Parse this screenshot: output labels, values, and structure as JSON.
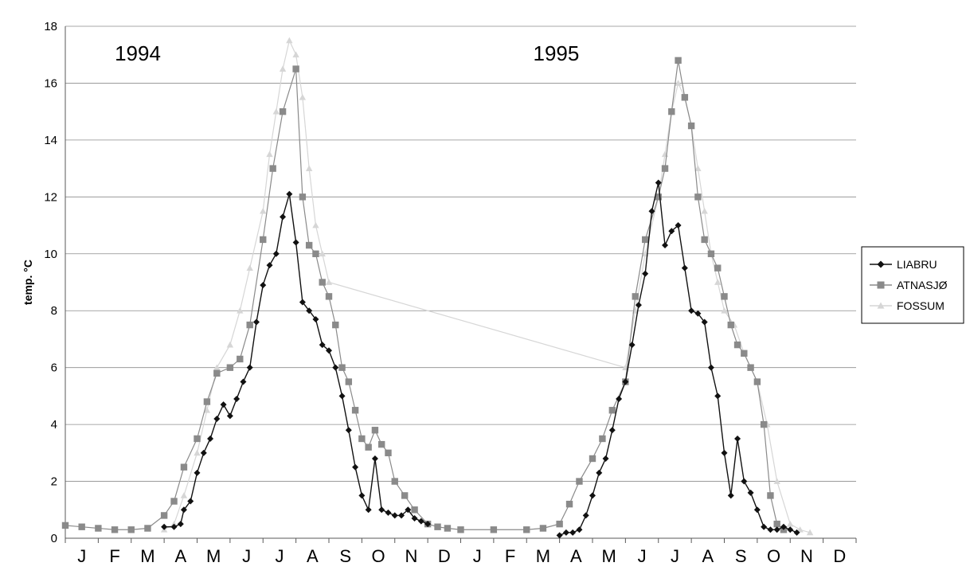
{
  "chart_data": {
    "type": "line",
    "ylabel": "temp. °C",
    "ylim": [
      0,
      18
    ],
    "yticks": [
      "0",
      "2",
      "4",
      "6",
      "8",
      "10",
      "12",
      "14",
      "16",
      "18"
    ],
    "xlim": [
      0,
      24
    ],
    "month_labels": [
      "J",
      "F",
      "M",
      "A",
      "M",
      "J",
      "J",
      "A",
      "S",
      "O",
      "N",
      "D",
      "J",
      "F",
      "M",
      "A",
      "M",
      "J",
      "J",
      "A",
      "S",
      "O",
      "N",
      "D"
    ],
    "annotations": [
      "1994",
      "1995"
    ],
    "grid": "horizontal",
    "legend_position": "right",
    "series": [
      {
        "name": "LIABRU",
        "color": "#111111",
        "marker": "diamond",
        "x": [
          3.0,
          3.3,
          3.5,
          3.6,
          3.8,
          4.0,
          4.2,
          4.4,
          4.6,
          4.8,
          5.0,
          5.2,
          5.4,
          5.6,
          5.8,
          6.0,
          6.2,
          6.4,
          6.6,
          6.8,
          7.0,
          7.2,
          7.4,
          7.6,
          7.8,
          8.0,
          8.2,
          8.4,
          8.6,
          8.8,
          9.0,
          9.2,
          9.4,
          9.6,
          9.8,
          10.0,
          10.2,
          10.4,
          10.6,
          10.8,
          11.0,
          12.0,
          13.0,
          14.0,
          15.0,
          15.2,
          15.4,
          15.6,
          15.8,
          16.0,
          16.2,
          16.4,
          16.6,
          16.8,
          17.0,
          17.2,
          17.4,
          17.6,
          17.8,
          18.0,
          18.2,
          18.4,
          18.6,
          18.8,
          19.0,
          19.2,
          19.4,
          19.6,
          19.8,
          20.0,
          20.2,
          20.4,
          20.6,
          20.8,
          21.0,
          21.2,
          21.4,
          21.6,
          21.8,
          22.0,
          22.2,
          22.4,
          22.6,
          22.8,
          23.0
        ],
        "y": [
          0.4,
          0.4,
          0.5,
          1.0,
          1.3,
          2.3,
          3.0,
          3.5,
          4.2,
          4.7,
          4.3,
          4.9,
          5.5,
          6.0,
          7.6,
          8.9,
          9.6,
          10.0,
          11.3,
          12.1,
          10.4,
          8.3,
          8.0,
          7.7,
          6.8,
          6.6,
          6.0,
          5.0,
          3.8,
          2.5,
          1.5,
          1.0,
          2.8,
          1.0,
          0.9,
          0.8,
          0.8,
          1.0,
          0.7,
          0.6,
          0.5,
          null,
          null,
          null,
          0.1,
          0.2,
          0.2,
          0.3,
          0.8,
          1.5,
          2.3,
          2.8,
          3.8,
          4.9,
          5.5,
          6.8,
          8.2,
          9.3,
          11.5,
          12.5,
          10.3,
          10.8,
          11.0,
          9.5,
          8.0,
          7.9,
          7.6,
          6.0,
          5.0,
          3.0,
          1.5,
          3.5,
          2.0,
          1.6,
          1.0,
          0.4,
          0.3,
          0.3,
          0.4,
          0.3,
          0.2,
          null,
          null,
          null,
          null
        ]
      },
      {
        "name": "ATNASJØ",
        "color": "#8a8a8a",
        "marker": "square",
        "x": [
          0.0,
          0.5,
          1.0,
          1.5,
          2.0,
          2.5,
          3.0,
          3.3,
          3.6,
          4.0,
          4.3,
          4.6,
          5.0,
          5.3,
          5.6,
          6.0,
          6.3,
          6.6,
          7.0,
          7.2,
          7.4,
          7.6,
          7.8,
          8.0,
          8.2,
          8.4,
          8.6,
          8.8,
          9.0,
          9.2,
          9.4,
          9.6,
          9.8,
          10.0,
          10.3,
          10.6,
          11.0,
          11.3,
          11.6,
          12.0,
          13.0,
          14.0,
          14.5,
          15.0,
          15.3,
          15.6,
          16.0,
          16.3,
          16.6,
          17.0,
          17.3,
          17.6,
          18.0,
          18.2,
          18.4,
          18.6,
          18.8,
          19.0,
          19.2,
          19.4,
          19.6,
          19.8,
          20.0,
          20.2,
          20.4,
          20.6,
          20.8,
          21.0,
          21.2,
          21.4,
          21.6,
          21.8,
          22.0,
          22.3,
          22.6,
          23.0
        ],
        "y": [
          0.45,
          0.4,
          0.35,
          0.3,
          0.3,
          0.35,
          0.8,
          1.3,
          2.5,
          3.5,
          4.8,
          5.8,
          6.0,
          6.3,
          7.5,
          10.5,
          13.0,
          15.0,
          16.5,
          12.0,
          10.3,
          10.0,
          9.0,
          8.5,
          7.5,
          6.0,
          5.5,
          4.5,
          3.5,
          3.2,
          3.8,
          3.3,
          3.0,
          2.0,
          1.5,
          1.0,
          0.5,
          0.4,
          0.35,
          0.3,
          0.3,
          0.3,
          0.35,
          0.5,
          1.2,
          2.0,
          2.8,
          3.5,
          4.5,
          5.5,
          8.5,
          10.5,
          12.0,
          13.0,
          15.0,
          16.8,
          15.5,
          14.5,
          12.0,
          10.5,
          10.0,
          9.5,
          8.5,
          7.5,
          6.8,
          6.5,
          6.0,
          5.5,
          4.0,
          1.5,
          0.5,
          0.3,
          null,
          null,
          null,
          null
        ]
      },
      {
        "name": "FOSSUM",
        "color": "#d6d6d6",
        "marker": "triangle",
        "x": [
          3.0,
          3.3,
          3.6,
          4.0,
          4.3,
          4.6,
          5.0,
          5.3,
          5.6,
          6.0,
          6.2,
          6.4,
          6.6,
          6.8,
          7.0,
          7.2,
          7.4,
          7.6,
          7.8,
          8.0,
          17.0,
          17.3,
          17.6,
          18.0,
          18.2,
          18.4,
          18.6,
          18.8,
          19.0,
          19.2,
          19.4,
          19.6,
          19.8,
          20.0,
          20.3,
          20.6,
          21.0,
          21.3,
          21.6,
          22.0,
          22.3,
          22.6
        ],
        "y": [
          0.3,
          0.5,
          1.5,
          3.0,
          4.5,
          6.0,
          6.8,
          8.0,
          9.5,
          11.5,
          13.5,
          15.0,
          16.5,
          17.5,
          17.0,
          15.5,
          13.0,
          11.0,
          10.0,
          9.0,
          6.0,
          8.0,
          10.0,
          12.0,
          13.5,
          15.0,
          16.0,
          15.5,
          14.5,
          13.0,
          11.5,
          10.0,
          9.0,
          8.0,
          7.5,
          6.5,
          5.5,
          4.0,
          2.0,
          0.5,
          0.3,
          0.2
        ]
      }
    ]
  }
}
